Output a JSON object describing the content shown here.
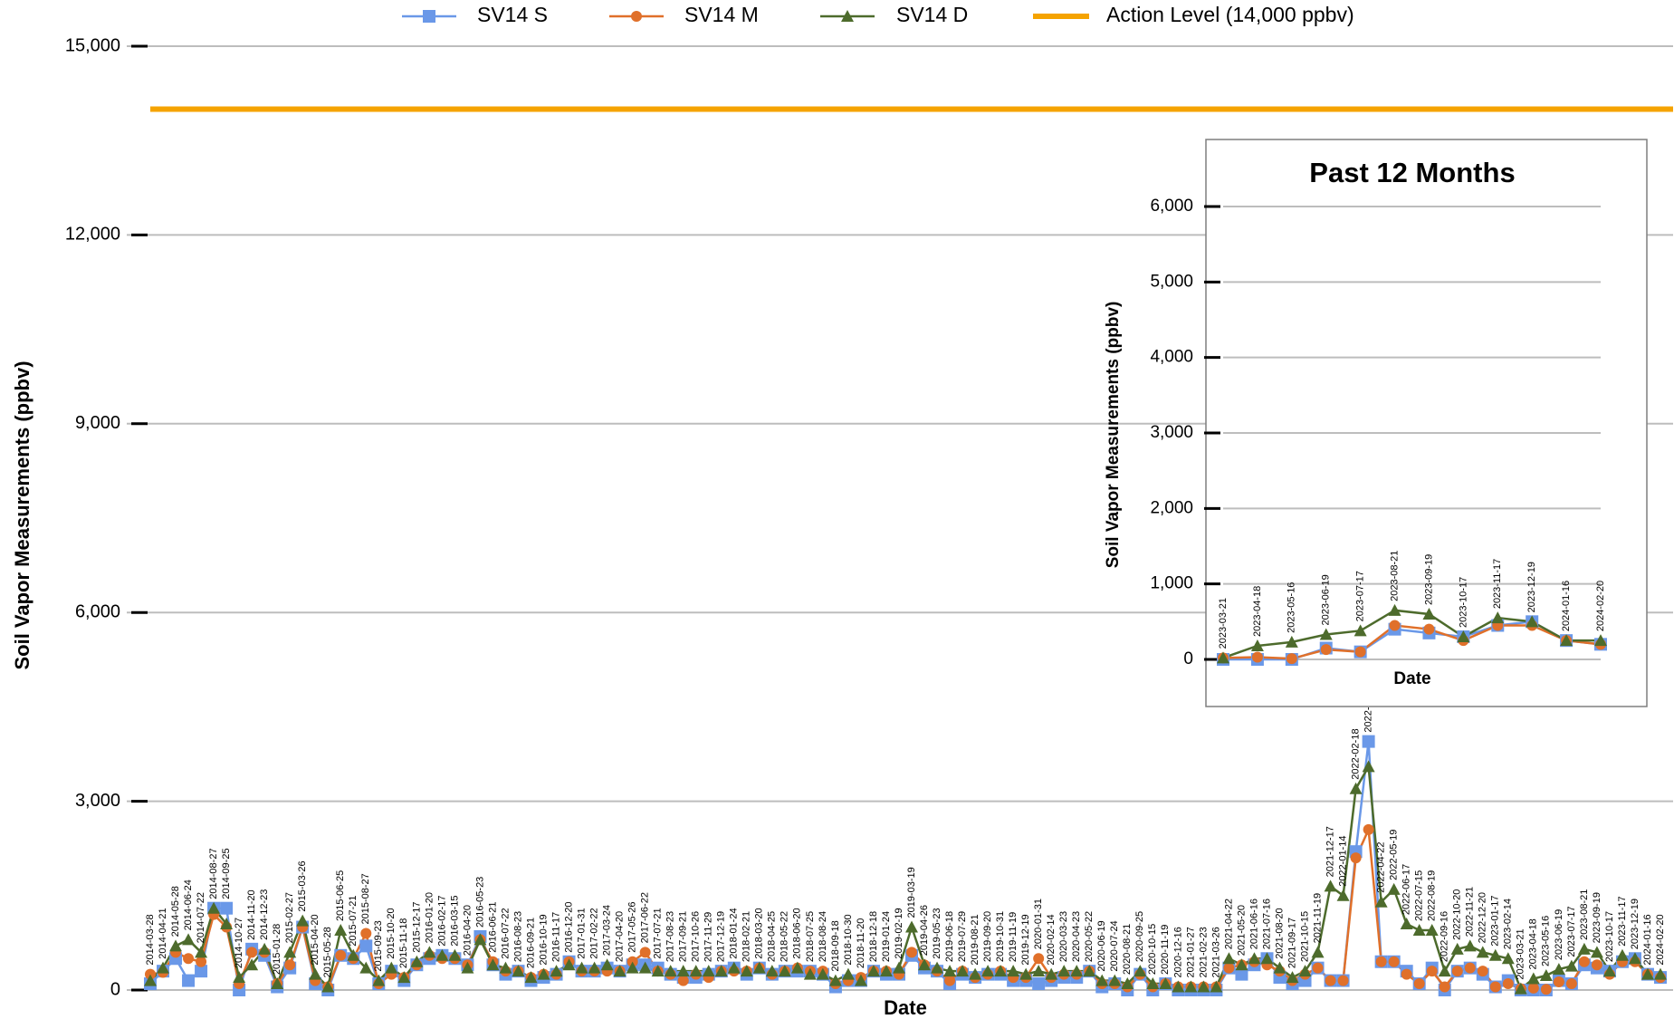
{
  "chart_data": [
    {
      "type": "line",
      "y_label": "Soil Vapor Measurements (ppbv)",
      "x_label": "Date",
      "legend": "top",
      "grid": true,
      "ylim": [
        0,
        15000
      ],
      "yticks": [
        0,
        {
          "value": 3000,
          "label": "3,000"
        },
        {
          "value": 6000,
          "label": "6,000"
        },
        {
          "value": 9000,
          "label": "9,000"
        },
        {
          "value": 12000,
          "label": "12,000"
        },
        {
          "value": 15000,
          "label": "15,000"
        }
      ],
      "categories": [
        "2014-03-28",
        "2014-04-21",
        "2014-05-28",
        "2014-06-24",
        "2014-07-22",
        "2014-08-27",
        "2014-09-25",
        "2014-10-27",
        "2014-11-20",
        "2014-12-23",
        "2015-01-28",
        "2015-02-27",
        "2015-03-26",
        "2015-04-20",
        "2015-05-28",
        "2015-06-25",
        "2015-07-21",
        "2015-08-27",
        "2015-09-23",
        "2015-10-20",
        "2015-11-18",
        "2015-12-17",
        "2016-01-20",
        "2016-02-17",
        "2016-03-15",
        "2016-04-20",
        "2016-05-23",
        "2016-06-21",
        "2016-07-22",
        "2016-08-23",
        "2016-09-21",
        "2016-10-19",
        "2016-11-17",
        "2016-12-20",
        "2017-01-31",
        "2017-02-22",
        "2017-03-24",
        "2017-04-20",
        "2017-05-26",
        "2017-06-22",
        "2017-07-21",
        "2017-08-23",
        "2017-09-21",
        "2017-10-26",
        "2017-11-29",
        "2017-12-19",
        "2018-01-24",
        "2018-02-21",
        "2018-03-20",
        "2018-04-25",
        "2018-05-22",
        "2018-06-20",
        "2018-07-25",
        "2018-08-24",
        "2018-09-18",
        "2018-10-30",
        "2018-11-20",
        "2018-12-18",
        "2019-01-24",
        "2019-02-19",
        "2019-03-19",
        "2019-04-26",
        "2019-05-23",
        "2019-06-18",
        "2019-07-29",
        "2019-08-21",
        "2019-09-20",
        "2019-10-31",
        "2019-11-19",
        "2019-12-19",
        "2020-01-31",
        "2020-02-14",
        "2020-03-23",
        "2020-04-23",
        "2020-05-22",
        "2020-06-19",
        "2020-07-24",
        "2020-08-21",
        "2020-09-25",
        "2020-10-15",
        "2020-11-19",
        "2020-12-16",
        "2021-01-27",
        "2021-02-23",
        "2021-03-26",
        "2021-04-22",
        "2021-05-20",
        "2021-06-16",
        "2021-07-16",
        "2021-08-20",
        "2021-09-17",
        "2021-10-15",
        "2021-11-19",
        "2021-12-17",
        "2022-01-14",
        "2022-02-18",
        "2022-",
        "2022-04-22",
        "2022-05-19",
        "2022-06-17",
        "2022-07-15",
        "2022-08-19",
        "2022-09-16",
        "2022-10-20",
        "2022-11-21",
        "2022-12-20",
        "2023-01-17",
        "2023-02-14",
        "2023-03-21",
        "2023-04-18",
        "2023-05-16",
        "2023-06-19",
        "2023-07-17",
        "2023-08-21",
        "2023-09-19",
        "2023-10-17",
        "2023-11-17",
        "2023-12-19",
        "2024-01-16",
        "2024-02-20"
      ],
      "series": [
        {
          "name": "SV14 S",
          "color": "#6a98e8",
          "marker": "square",
          "values": [
            100,
            300,
            500,
            150,
            300,
            1300,
            1300,
            0,
            650,
            550,
            50,
            350,
            1000,
            100,
            0,
            550,
            500,
            700,
            100,
            300,
            150,
            400,
            500,
            550,
            500,
            400,
            850,
            400,
            250,
            300,
            150,
            200,
            250,
            450,
            300,
            300,
            350,
            300,
            400,
            400,
            350,
            250,
            200,
            200,
            250,
            300,
            350,
            250,
            350,
            250,
            300,
            300,
            300,
            250,
            50,
            150,
            150,
            300,
            250,
            250,
            550,
            350,
            300,
            100,
            250,
            200,
            250,
            250,
            150,
            150,
            100,
            150,
            200,
            200,
            300,
            50,
            100,
            0,
            250,
            0,
            100,
            0,
            0,
            0,
            0,
            350,
            250,
            400,
            500,
            200,
            100,
            150,
            350,
            150,
            150,
            2200,
            3950,
            450,
            450,
            300,
            100,
            350,
            0,
            300,
            350,
            250,
            50,
            150,
            0,
            0,
            0,
            150,
            100,
            400,
            350,
            300,
            450,
            500,
            250,
            200
          ]
        },
        {
          "name": "SV14 M",
          "color": "#e0702a",
          "marker": "circle",
          "values": [
            250,
            280,
            600,
            500,
            450,
            1200,
            1000,
            100,
            600,
            600,
            100,
            400,
            1000,
            150,
            50,
            550,
            500,
            900,
            100,
            250,
            200,
            400,
            550,
            500,
            500,
            400,
            800,
            450,
            300,
            300,
            200,
            250,
            250,
            450,
            300,
            300,
            300,
            300,
            450,
            600,
            300,
            250,
            150,
            250,
            200,
            300,
            300,
            300,
            350,
            250,
            300,
            350,
            300,
            300,
            100,
            150,
            200,
            300,
            300,
            250,
            600,
            400,
            300,
            150,
            300,
            200,
            250,
            300,
            200,
            200,
            500,
            200,
            250,
            250,
            300,
            100,
            100,
            50,
            250,
            50,
            100,
            50,
            50,
            50,
            50,
            350,
            400,
            450,
            400,
            300,
            150,
            250,
            350,
            150,
            150,
            2100,
            2550,
            450,
            450,
            250,
            100,
            300,
            50,
            300,
            350,
            300,
            50,
            100,
            20,
            30,
            10,
            130,
            100,
            450,
            400,
            250,
            450,
            450,
            250,
            200
          ]
        },
        {
          "name": "SV14 D",
          "color": "#4d6b2c",
          "marker": "triangle",
          "values": [
            150,
            350,
            700,
            800,
            600,
            1300,
            1050,
            200,
            400,
            650,
            100,
            600,
            1100,
            250,
            50,
            950,
            550,
            350,
            150,
            350,
            200,
            450,
            600,
            550,
            550,
            350,
            800,
            400,
            350,
            300,
            200,
            250,
            300,
            400,
            350,
            350,
            400,
            300,
            350,
            350,
            300,
            300,
            300,
            300,
            300,
            300,
            350,
            300,
            350,
            300,
            300,
            350,
            250,
            250,
            150,
            250,
            150,
            300,
            300,
            350,
            1000,
            400,
            350,
            300,
            300,
            250,
            300,
            300,
            300,
            250,
            300,
            250,
            300,
            300,
            300,
            150,
            150,
            100,
            300,
            100,
            100,
            50,
            50,
            50,
            50,
            500,
            400,
            500,
            500,
            350,
            200,
            300,
            600,
            1650,
            1500,
            3200,
            3550,
            1400,
            1600,
            1050,
            950,
            950,
            300,
            650,
            700,
            600,
            550,
            500,
            20,
            180,
            230,
            330,
            380,
            650,
            600,
            300,
            550,
            500,
            250,
            250
          ]
        }
      ],
      "reference_lines": [
        {
          "name": "Action Level (14,000 ppbv)",
          "value": 14000,
          "color": "#f5a300"
        }
      ]
    },
    {
      "type": "line",
      "title": "Past 12 Months",
      "y_label": "Soil Vapor Measurements (ppbv)",
      "x_label": "Date",
      "grid": true,
      "ylim": [
        0,
        6000
      ],
      "yticks": [
        0,
        {
          "value": 1000,
          "label": "1,000"
        },
        {
          "value": 2000,
          "label": "2,000"
        },
        {
          "value": 3000,
          "label": "3,000"
        },
        {
          "value": 4000,
          "label": "4,000"
        },
        {
          "value": 5000,
          "label": "5,000"
        },
        {
          "value": 6000,
          "label": "6,000"
        }
      ],
      "categories": [
        "2023-03-21",
        "2023-04-18",
        "2023-05-16",
        "2023-06-19",
        "2023-07-17",
        "2023-08-21",
        "2023-09-19",
        "2023-10-17",
        "2023-11-17",
        "2023-12-19",
        "2024-01-16",
        "2024-02-20"
      ],
      "series": [
        {
          "name": "SV14 S",
          "color": "#6a98e8",
          "marker": "square",
          "values": [
            0,
            0,
            0,
            150,
            100,
            400,
            350,
            300,
            450,
            500,
            250,
            200
          ]
        },
        {
          "name": "SV14 M",
          "color": "#e0702a",
          "marker": "circle",
          "values": [
            20,
            30,
            10,
            130,
            100,
            450,
            400,
            250,
            450,
            450,
            250,
            200
          ]
        },
        {
          "name": "SV14 D",
          "color": "#4d6b2c",
          "marker": "triangle",
          "values": [
            20,
            180,
            230,
            330,
            380,
            650,
            600,
            300,
            550,
            500,
            250,
            250
          ]
        }
      ]
    }
  ]
}
